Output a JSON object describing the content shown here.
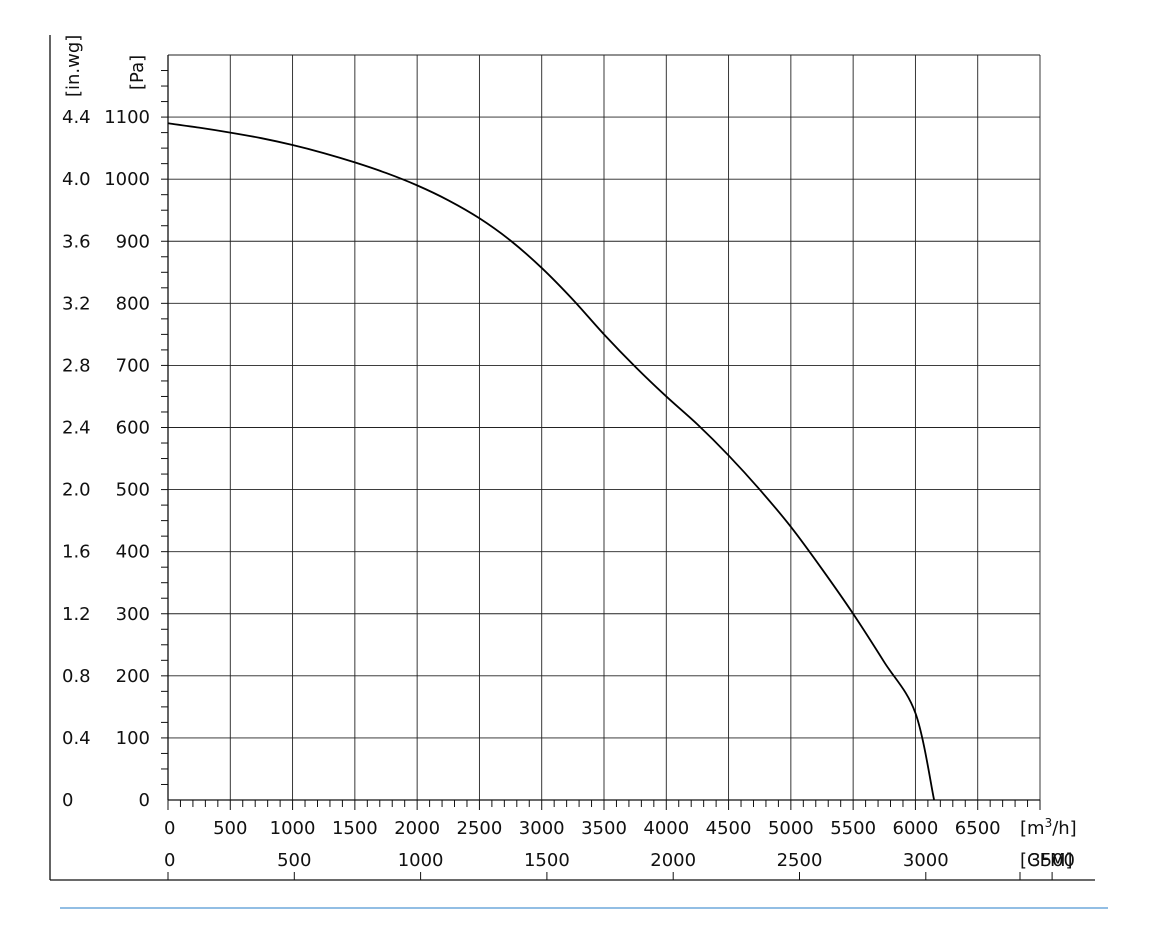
{
  "chart_data": {
    "type": "line",
    "title": "",
    "x_primary": {
      "unit_label": "[m3/h]",
      "unit_base": "[m",
      "unit_sup": "3",
      "unit_tail": "/h]",
      "range": [
        0,
        7000
      ],
      "ticks": [
        0,
        500,
        1000,
        1500,
        2000,
        2500,
        3000,
        3500,
        4000,
        4500,
        5000,
        5500,
        6000,
        6500
      ],
      "tick_labels": [
        "0",
        "500",
        "1000",
        "1500",
        "2000",
        "2500",
        "3000",
        "3500",
        "4000",
        "4500",
        "5000",
        "5500",
        "6000",
        "6500"
      ]
    },
    "x_secondary": {
      "unit_label": "[CFM]",
      "ticks": [
        0,
        500,
        1000,
        1500,
        2000,
        2500,
        3000,
        3500
      ],
      "tick_labels": [
        "0",
        "500",
        "1000",
        "1500",
        "2000",
        "2500",
        "3000",
        "3500"
      ]
    },
    "y_primary": {
      "unit_label": "[Pa]",
      "range": [
        0,
        1100
      ],
      "ticks": [
        0,
        100,
        200,
        300,
        400,
        500,
        600,
        700,
        800,
        900,
        1000,
        1100
      ],
      "tick_labels": [
        "0",
        "100",
        "200",
        "300",
        "400",
        "500",
        "600",
        "700",
        "800",
        "900",
        "1000",
        "1100"
      ]
    },
    "y_secondary": {
      "unit_label": "[in.wg]",
      "tick_labels": [
        "0",
        "0.4",
        "0.8",
        "1.2",
        "1.6",
        "2.0",
        "2.4",
        "2.8",
        "3.2",
        "3.6",
        "4.0",
        "4.4"
      ]
    },
    "grid": true,
    "series": [
      {
        "x": [
          0,
          250,
          500,
          750,
          1000,
          1250,
          1500,
          1750,
          2000,
          2250,
          2500,
          2750,
          3000,
          3250,
          3500,
          3750,
          4000,
          4250,
          4500,
          4750,
          5000,
          5250,
          5500,
          5750,
          6000,
          6150
        ],
        "y": [
          1090,
          1083,
          1075,
          1066,
          1055,
          1042,
          1027,
          1010,
          990,
          966,
          937,
          901,
          857,
          806,
          750,
          698,
          650,
          605,
          555,
          500,
          440,
          372,
          300,
          222,
          140,
          0
        ]
      }
    ]
  }
}
